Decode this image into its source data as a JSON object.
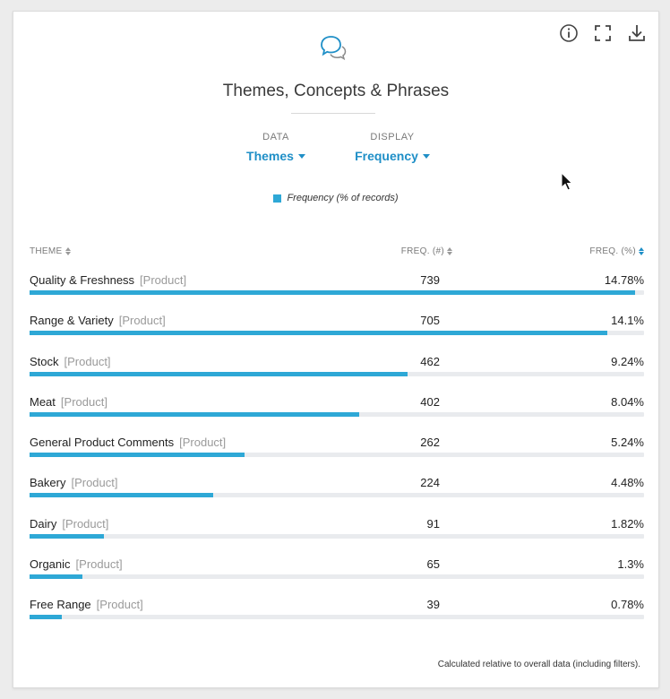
{
  "panel": {
    "title": "Themes, Concepts & Phrases",
    "header_icon": "speech-bubbles-icon",
    "top_icons": [
      "info-icon",
      "fullscreen-icon",
      "download-icon"
    ]
  },
  "selectors": {
    "data": {
      "label": "DATA",
      "value": "Themes"
    },
    "display": {
      "label": "DISPLAY",
      "value": "Frequency"
    }
  },
  "legend": {
    "label": "Frequency (% of records)",
    "color": "#2ea8d6"
  },
  "table": {
    "headers": {
      "theme": "THEME",
      "count": "FREQ. (#)",
      "pct": "FREQ. (%)"
    },
    "active_sort": "pct",
    "rows": [
      {
        "theme": "Quality & Freshness",
        "tag": "[Product]",
        "count": "739",
        "pct": "14.78%",
        "value": 14.78
      },
      {
        "theme": "Range & Variety",
        "tag": "[Product]",
        "count": "705",
        "pct": "14.1%",
        "value": 14.1
      },
      {
        "theme": "Stock",
        "tag": "[Product]",
        "count": "462",
        "pct": "9.24%",
        "value": 9.24
      },
      {
        "theme": "Meat",
        "tag": "[Product]",
        "count": "402",
        "pct": "8.04%",
        "value": 8.04
      },
      {
        "theme": "General Product Comments",
        "tag": "[Product]",
        "count": "262",
        "pct": "5.24%",
        "value": 5.24
      },
      {
        "theme": "Bakery",
        "tag": "[Product]",
        "count": "224",
        "pct": "4.48%",
        "value": 4.48
      },
      {
        "theme": "Dairy",
        "tag": "[Product]",
        "count": "91",
        "pct": "1.82%",
        "value": 1.82
      },
      {
        "theme": "Organic",
        "tag": "[Product]",
        "count": "65",
        "pct": "1.3%",
        "value": 1.3
      },
      {
        "theme": "Free Range",
        "tag": "[Product]",
        "count": "39",
        "pct": "0.78%",
        "value": 0.78
      }
    ]
  },
  "footnote": "Calculated relative to overall data (including filters).",
  "colors": {
    "accent": "#1f8fc7",
    "bar": "#2ea8d6",
    "track": "#e9ebee"
  }
}
